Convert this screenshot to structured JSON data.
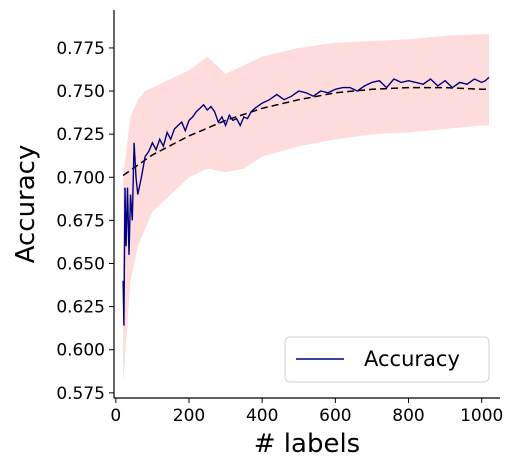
{
  "chart_data": {
    "type": "line",
    "xlabel": "# labels",
    "ylabel": "Accuracy",
    "xlim": [
      -5,
      1050
    ],
    "ylim": [
      0.572,
      0.797
    ],
    "xticks": [
      "0",
      "200",
      "400",
      "600",
      "800",
      "1000"
    ],
    "yticks": [
      "0.575",
      "0.600",
      "0.625",
      "0.650",
      "0.675",
      "0.700",
      "0.725",
      "0.750",
      "0.775"
    ],
    "grid": false,
    "legend": {
      "placement": "bottom-right",
      "entries": [
        "Accuracy"
      ]
    },
    "colors": {
      "line": "#000080",
      "band": "#ffc0c0",
      "trend": "#000000"
    },
    "series": [
      {
        "name": "Accuracy",
        "style": "solid",
        "x": [
          20,
          22,
          25,
          28,
          32,
          36,
          40,
          45,
          50,
          55,
          60,
          70,
          80,
          90,
          100,
          110,
          120,
          130,
          140,
          150,
          160,
          170,
          180,
          190,
          200,
          210,
          220,
          230,
          240,
          250,
          260,
          270,
          280,
          290,
          300,
          310,
          320,
          330,
          340,
          350,
          360,
          370,
          380,
          400,
          420,
          440,
          460,
          480,
          500,
          520,
          540,
          560,
          580,
          600,
          620,
          640,
          660,
          680,
          700,
          720,
          740,
          760,
          780,
          800,
          820,
          840,
          860,
          880,
          900,
          920,
          940,
          960,
          980,
          1000,
          1010,
          1020
        ],
        "y": [
          0.64,
          0.614,
          0.694,
          0.66,
          0.694,
          0.655,
          0.69,
          0.675,
          0.72,
          0.7,
          0.69,
          0.7,
          0.712,
          0.715,
          0.72,
          0.716,
          0.722,
          0.718,
          0.726,
          0.722,
          0.728,
          0.73,
          0.732,
          0.727,
          0.733,
          0.735,
          0.738,
          0.74,
          0.742,
          0.739,
          0.741,
          0.738,
          0.732,
          0.735,
          0.73,
          0.736,
          0.733,
          0.734,
          0.73,
          0.735,
          0.734,
          0.738,
          0.74,
          0.743,
          0.745,
          0.748,
          0.745,
          0.747,
          0.75,
          0.749,
          0.747,
          0.75,
          0.749,
          0.751,
          0.752,
          0.752,
          0.75,
          0.753,
          0.755,
          0.756,
          0.752,
          0.757,
          0.755,
          0.756,
          0.755,
          0.754,
          0.757,
          0.753,
          0.756,
          0.752,
          0.755,
          0.754,
          0.757,
          0.755,
          0.756,
          0.758
        ]
      },
      {
        "name": "",
        "style": "dashed",
        "x": [
          20,
          100,
          200,
          300,
          400,
          500,
          600,
          700,
          800,
          900,
          1000,
          1020
        ],
        "y": [
          0.701,
          0.713,
          0.724,
          0.733,
          0.74,
          0.745,
          0.749,
          0.751,
          0.752,
          0.752,
          0.751,
          0.751
        ]
      }
    ],
    "band": {
      "x": [
        20,
        40,
        60,
        80,
        100,
        150,
        200,
        250,
        300,
        350,
        400,
        500,
        600,
        700,
        800,
        900,
        1000,
        1020
      ],
      "lower": [
        0.58,
        0.64,
        0.66,
        0.67,
        0.68,
        0.69,
        0.7,
        0.705,
        0.703,
        0.705,
        0.712,
        0.718,
        0.722,
        0.725,
        0.726,
        0.728,
        0.73,
        0.73
      ],
      "upper": [
        0.7,
        0.735,
        0.745,
        0.75,
        0.752,
        0.757,
        0.762,
        0.77,
        0.76,
        0.765,
        0.77,
        0.775,
        0.778,
        0.779,
        0.78,
        0.782,
        0.783,
        0.783
      ]
    }
  }
}
